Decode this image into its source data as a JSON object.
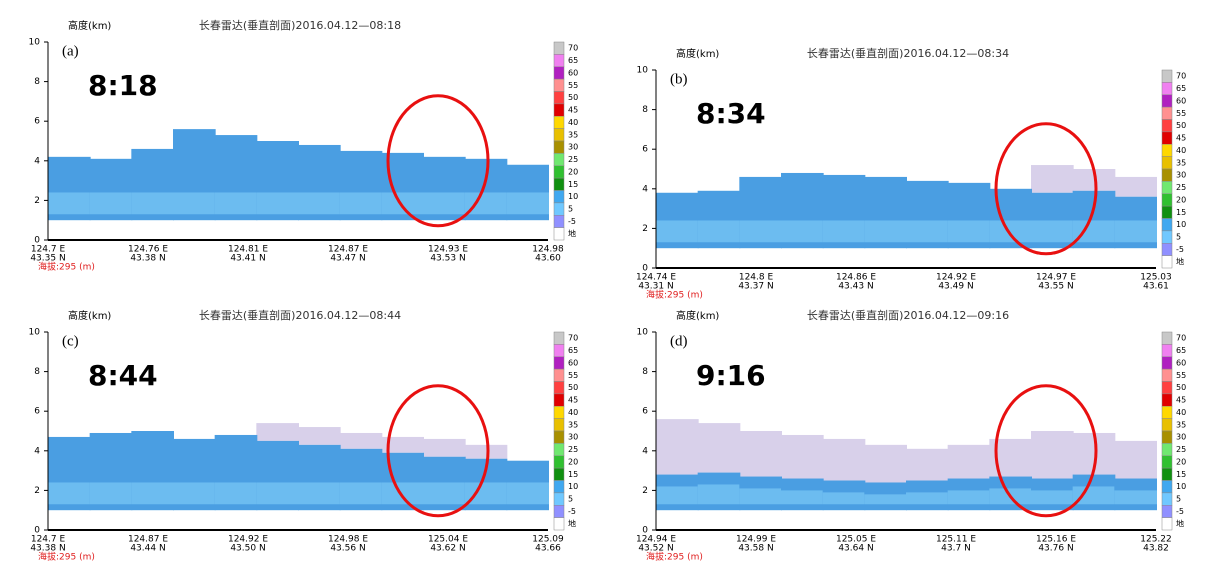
{
  "y_label": "高度(km)",
  "yticks": [
    0,
    2,
    4,
    6,
    8,
    10
  ],
  "legend": [
    "70",
    "65",
    "60",
    "55",
    "50",
    "45",
    "40",
    "35",
    "30",
    "25",
    "20",
    "15",
    "10",
    "5",
    "-5",
    "地"
  ],
  "altitude": "海拔:295 (m)",
  "panels": [
    {
      "label": "(a)",
      "time": "8:18",
      "title": "长春雷达(垂直剖面)2016.04.12—08:18",
      "xlabels": [
        [
          "124.7 E",
          "43.35 N"
        ],
        [
          "124.76 E",
          "43.38 N"
        ],
        [
          "124.81 E",
          "43.41 N"
        ],
        [
          "124.87 E",
          "43.47 N"
        ],
        [
          "124.93 E",
          "43.53 N"
        ],
        [
          "124.98",
          "43.60"
        ]
      ]
    },
    {
      "label": "(b)",
      "time": "8:34",
      "title": "长春雷达(垂直剖面)2016.04.12—08:34",
      "xlabels": [
        [
          "124.74 E",
          "43.31 N"
        ],
        [
          "124.8 E",
          "43.37 N"
        ],
        [
          "124.86 E",
          "43.43 N"
        ],
        [
          "124.92 E",
          "43.49 N"
        ],
        [
          "124.97 E",
          "43.55 N"
        ],
        [
          "125.03",
          "43.61"
        ]
      ]
    },
    {
      "label": "(c)",
      "time": "8:44",
      "title": "长春雷达(垂直剖面)2016.04.12—08:44",
      "xlabels": [
        [
          "124.7 E",
          "43.38 N"
        ],
        [
          "124.87 E",
          "43.44 N"
        ],
        [
          "124.92 E",
          "43.50 N"
        ],
        [
          "124.98 E",
          "43.56 N"
        ],
        [
          "125.04 E",
          "43.62 N"
        ],
        [
          "125.09",
          "43.66"
        ]
      ]
    },
    {
      "label": "(d)",
      "time": "9:16",
      "title": "长春雷达(垂直剖面)2016.04.12—09:16",
      "xlabels": [
        [
          "124.94 E",
          "43.52 N"
        ],
        [
          "124.99 E",
          "43.58 N"
        ],
        [
          "125.05 E",
          "43.64 N"
        ],
        [
          "125.11 E",
          "43.7 N"
        ],
        [
          "125.16 E",
          "43.76 N"
        ],
        [
          "125.22",
          "43.82"
        ]
      ]
    }
  ]
}
